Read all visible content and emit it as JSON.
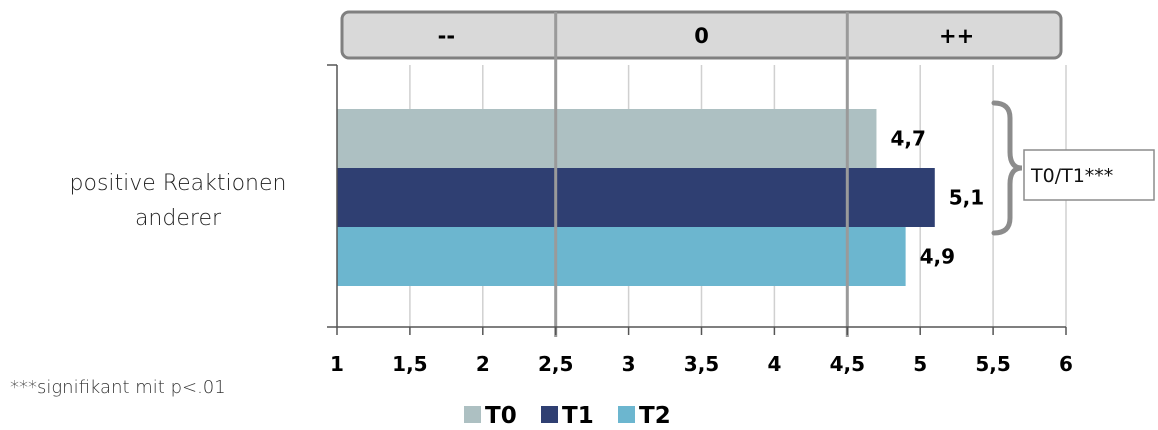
{
  "chart_data": {
    "type": "bar",
    "orientation": "horizontal",
    "categories": [
      "positive Reaktionen anderer"
    ],
    "category_lines": [
      "positive Reaktionen",
      "anderer"
    ],
    "series": [
      {
        "name": "T0",
        "values": [
          4.7
        ],
        "color": "#adc0c2"
      },
      {
        "name": "T1",
        "values": [
          5.1
        ],
        "color": "#2f3f72"
      },
      {
        "name": "T2",
        "values": [
          4.9
        ],
        "color": "#6cb6cf"
      }
    ],
    "value_labels": [
      "4,7",
      "5,1",
      "4,9"
    ],
    "xlim": [
      1,
      6
    ],
    "xticks": [
      1,
      1.5,
      2,
      2.5,
      3,
      3.5,
      4,
      4.5,
      5,
      5.5,
      6
    ],
    "xtick_labels": [
      "1",
      "1,5",
      "2",
      "2,5",
      "3",
      "3,5",
      "4",
      "4,5",
      "5",
      "5,5",
      "6"
    ],
    "grid": true,
    "reference_lines": [
      2.5,
      4.5
    ],
    "scale_zones": [
      {
        "label": "--",
        "from": 1,
        "to": 2.5
      },
      {
        "label": "0",
        "from": 2.5,
        "to": 4.5
      },
      {
        "label": "++",
        "from": 4.5,
        "to": 6
      }
    ],
    "significance_annotation": "T0/T1***",
    "footnote": "***signifikant mit p<.01",
    "legend_position": "bottom",
    "title": "",
    "xlabel": "",
    "ylabel": ""
  },
  "colors": {
    "gridline": "#d0d0d0",
    "reference_line": "#9a9a9a",
    "zone_fill": "#d9d9d9",
    "zone_border": "#808080",
    "axis": "#555555"
  }
}
